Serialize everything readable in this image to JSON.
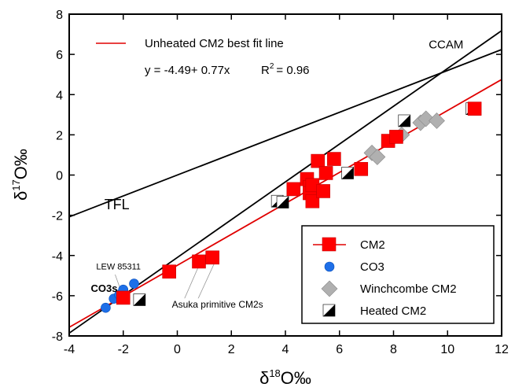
{
  "chart_data": {
    "type": "scatter",
    "x_axis": {
      "lim": [
        -4,
        12
      ],
      "ticks": [
        -4,
        -2,
        0,
        2,
        4,
        6,
        8,
        10,
        12
      ],
      "label_main": "δ",
      "label_sup": "18",
      "label_tail": "O‰"
    },
    "y_axis": {
      "lim": [
        -8,
        8
      ],
      "ticks": [
        -8,
        -6,
        -4,
        -2,
        0,
        2,
        4,
        6,
        8
      ],
      "label_main": "δ",
      "label_sup": "17",
      "label_tail": "O‰"
    },
    "grid": false,
    "legend_position": "bottom-right",
    "lines": [
      {
        "name": "TFL",
        "slope": 0.52,
        "intercept": 0.0,
        "color": "#000000"
      },
      {
        "name": "CCAM",
        "slope": 0.94,
        "intercept": -4.1,
        "color": "#000000"
      },
      {
        "name": "Unheated CM2 best fit line",
        "slope": 0.77,
        "intercept": -4.49,
        "color": "#e00000"
      }
    ],
    "fit_annotation": {
      "title": "Unheated CM2 best fit line",
      "equation": "y = -4.49+ 0.77x",
      "r2_label": "R",
      "r2_sup": "2",
      "r2_value": "= 0.96",
      "color": "#e00000"
    },
    "annotations": [
      {
        "text": "TFL",
        "x": -2.7,
        "y": -1.7
      },
      {
        "text": "CCAM",
        "x": 9.3,
        "y": 6.3
      },
      {
        "text": "LEW 85311",
        "x": -3.0,
        "y": -4.7
      },
      {
        "text": "CO3s",
        "x": -3.2,
        "y": -5.8,
        "color": "#1030c0"
      },
      {
        "text": "Asuka primitive CM2s",
        "x": -0.2,
        "y": -6.6
      }
    ],
    "leader_lines": [
      {
        "from": [
          -2.3,
          -4.95
        ],
        "to": [
          -2.1,
          -5.7
        ]
      },
      {
        "from": [
          0.2,
          -6.35
        ],
        "to": [
          0.8,
          -4.5
        ]
      },
      {
        "from": [
          0.7,
          -6.35
        ],
        "to": [
          1.4,
          -4.3
        ]
      }
    ],
    "series": [
      {
        "name": "CM2",
        "marker": "square",
        "color": "#ff0000",
        "line_color": "#e00000",
        "points": [
          [
            -2.0,
            -6.1
          ],
          [
            -0.3,
            -4.8
          ],
          [
            0.8,
            -4.3
          ],
          [
            1.3,
            -4.1
          ],
          [
            4.3,
            -0.7
          ],
          [
            4.8,
            -0.2
          ],
          [
            4.9,
            -0.6
          ],
          [
            4.9,
            -0.9
          ],
          [
            5.0,
            -1.3
          ],
          [
            5.0,
            -0.5
          ],
          [
            5.2,
            0.7
          ],
          [
            5.4,
            -0.8
          ],
          [
            5.5,
            0.1
          ],
          [
            5.8,
            0.8
          ],
          [
            6.8,
            0.3
          ],
          [
            7.8,
            1.7
          ],
          [
            8.1,
            1.9
          ],
          [
            11.0,
            3.3
          ]
        ]
      },
      {
        "name": "CO3",
        "marker": "circle",
        "color": "#1e6fe8",
        "points": [
          [
            -2.65,
            -6.6
          ],
          [
            -2.35,
            -6.15
          ],
          [
            -2.15,
            -5.95
          ],
          [
            -2.0,
            -5.7
          ],
          [
            -1.6,
            -5.4
          ]
        ]
      },
      {
        "name": "Winchcombe CM2",
        "marker": "diamond",
        "color": "#b0b0b0",
        "points": [
          [
            7.2,
            1.1
          ],
          [
            7.4,
            0.9
          ],
          [
            8.3,
            2.0
          ],
          [
            9.0,
            2.6
          ],
          [
            9.2,
            2.8
          ],
          [
            9.6,
            2.7
          ]
        ]
      },
      {
        "name": "Heated CM2",
        "marker": "half",
        "color": "#000000",
        "points": [
          [
            -1.4,
            -6.2
          ],
          [
            3.7,
            -1.3
          ],
          [
            3.9,
            -1.35
          ],
          [
            6.3,
            0.1
          ],
          [
            8.4,
            2.7
          ],
          [
            10.9,
            3.3
          ]
        ]
      }
    ]
  }
}
